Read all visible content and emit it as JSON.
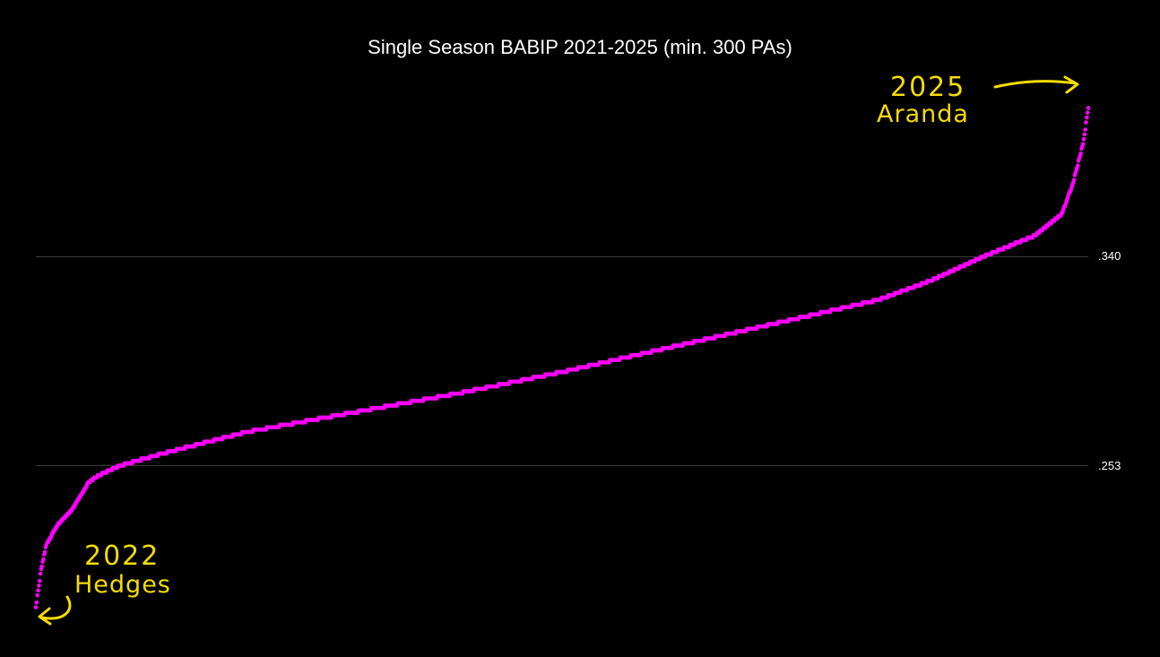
{
  "chart_data": {
    "type": "scatter",
    "title": "Single Season BABIP 2021-2025 (min. 300 PAs)",
    "xlabel": "",
    "ylabel": "",
    "y_gridlines": [
      0.253,
      0.34
    ],
    "y_tick_labels": [
      ".253",
      ".340"
    ],
    "ylim": [
      0.189,
      0.41
    ],
    "grid": true,
    "legend": "none",
    "point_color": "#ff00ff",
    "curve_anchors": [
      [
        0.0,
        0.194
      ],
      [
        0.005,
        0.21
      ],
      [
        0.01,
        0.22
      ],
      [
        0.02,
        0.228
      ],
      [
        0.035,
        0.235
      ],
      [
        0.05,
        0.246
      ],
      [
        0.06,
        0.249
      ],
      [
        0.08,
        0.253
      ],
      [
        0.12,
        0.258
      ],
      [
        0.2,
        0.267
      ],
      [
        0.3,
        0.275
      ],
      [
        0.4,
        0.283
      ],
      [
        0.5,
        0.292
      ],
      [
        0.6,
        0.302
      ],
      [
        0.7,
        0.312
      ],
      [
        0.8,
        0.322
      ],
      [
        0.85,
        0.33
      ],
      [
        0.9,
        0.34
      ],
      [
        0.95,
        0.349
      ],
      [
        0.975,
        0.358
      ],
      [
        0.985,
        0.37
      ],
      [
        0.995,
        0.387
      ],
      [
        1.0,
        0.402
      ]
    ],
    "n_points": 1400,
    "annotations": [
      {
        "year": "2025",
        "name": "Aranda",
        "color": "#f5dc00",
        "target": "max"
      },
      {
        "year": "2022",
        "name": "Hedges",
        "color": "#f5dc00",
        "target": "min"
      }
    ]
  }
}
